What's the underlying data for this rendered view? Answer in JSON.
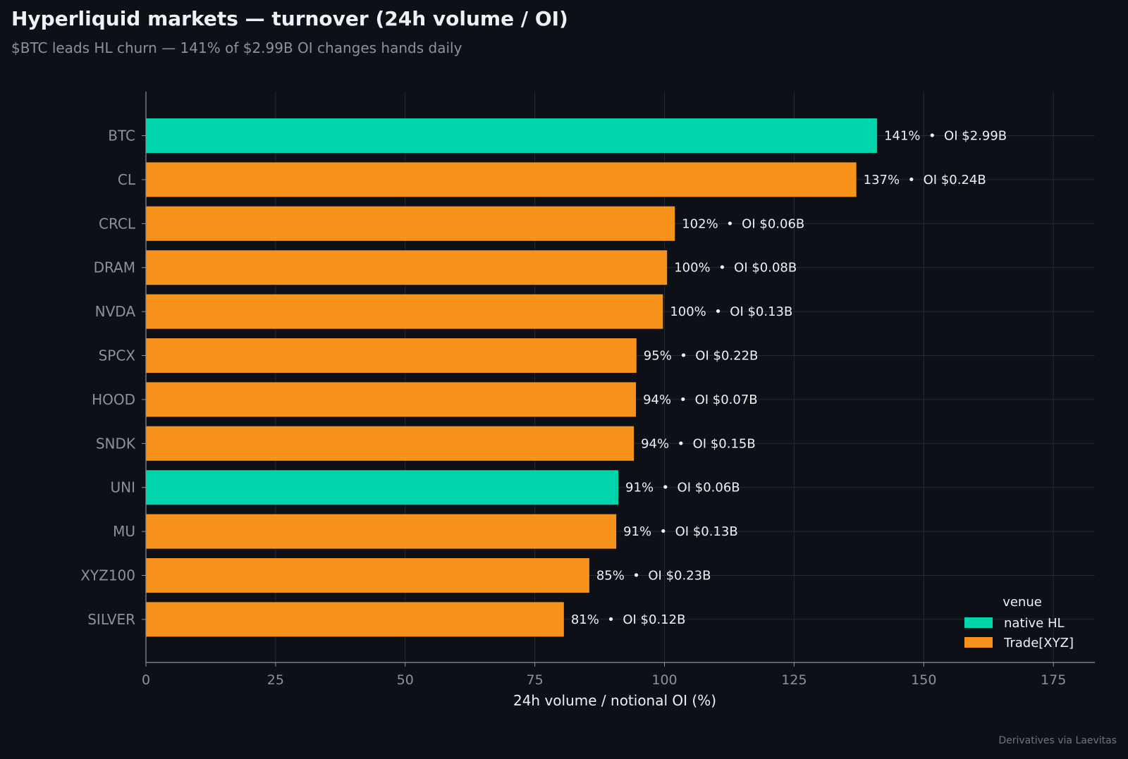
{
  "header": {
    "title": "Hyperliquid markets — turnover (24h volume / OI)",
    "subtitle": "$BTC leads HL churn — 141% of $2.99B OI changes hands daily"
  },
  "footer": {
    "credit": "Derivatives via Laevitas"
  },
  "colors": {
    "background": "#0d1017",
    "native_hl": "#00d4aa",
    "trade_xyz": "#f7931a",
    "grid": "#262b33",
    "axis": "#8b929c",
    "label_text": "#eef0f3"
  },
  "chart_data": {
    "type": "bar",
    "orientation": "horizontal",
    "title": "Hyperliquid markets — turnover (24h volume / OI)",
    "subtitle": "$BTC leads HL churn — 141% of $2.99B OI changes hands daily",
    "xlabel": "24h volume / notional OI (%)",
    "ylabel": "",
    "xlim": [
      0,
      183
    ],
    "xticks": [
      0,
      25,
      50,
      75,
      100,
      125,
      150,
      175
    ],
    "grid": true,
    "legend": {
      "title": "venue",
      "position": "lower-right",
      "entries": [
        {
          "name": "native HL",
          "color": "#00d4aa"
        },
        {
          "name": "Trade[XYZ]",
          "color": "#f7931a"
        }
      ]
    },
    "categories": [
      "BTC",
      "CL",
      "CRCL",
      "DRAM",
      "NVDA",
      "SPCX",
      "HOOD",
      "SNDK",
      "UNI",
      "MU",
      "XYZ100",
      "SILVER"
    ],
    "values": [
      141,
      137,
      102,
      100.5,
      99.7,
      94.6,
      94.5,
      94.1,
      91.1,
      90.7,
      85.5,
      80.6
    ],
    "venues": [
      "native HL",
      "Trade[XYZ]",
      "Trade[XYZ]",
      "Trade[XYZ]",
      "Trade[XYZ]",
      "Trade[XYZ]",
      "Trade[XYZ]",
      "Trade[XYZ]",
      "native HL",
      "Trade[XYZ]",
      "Trade[XYZ]",
      "Trade[XYZ]"
    ],
    "data_labels": [
      "141%  •  OI $2.99B",
      "137%  •  OI $0.24B",
      "102%  •  OI $0.06B",
      "100%  •  OI $0.08B",
      "100%  •  OI $0.13B",
      "95%  •  OI $0.22B",
      "94%  •  OI $0.07B",
      "94%  •  OI $0.15B",
      "91%  •  OI $0.06B",
      "91%  •  OI $0.13B",
      "85%  •  OI $0.23B",
      "81%  •  OI $0.12B"
    ]
  }
}
